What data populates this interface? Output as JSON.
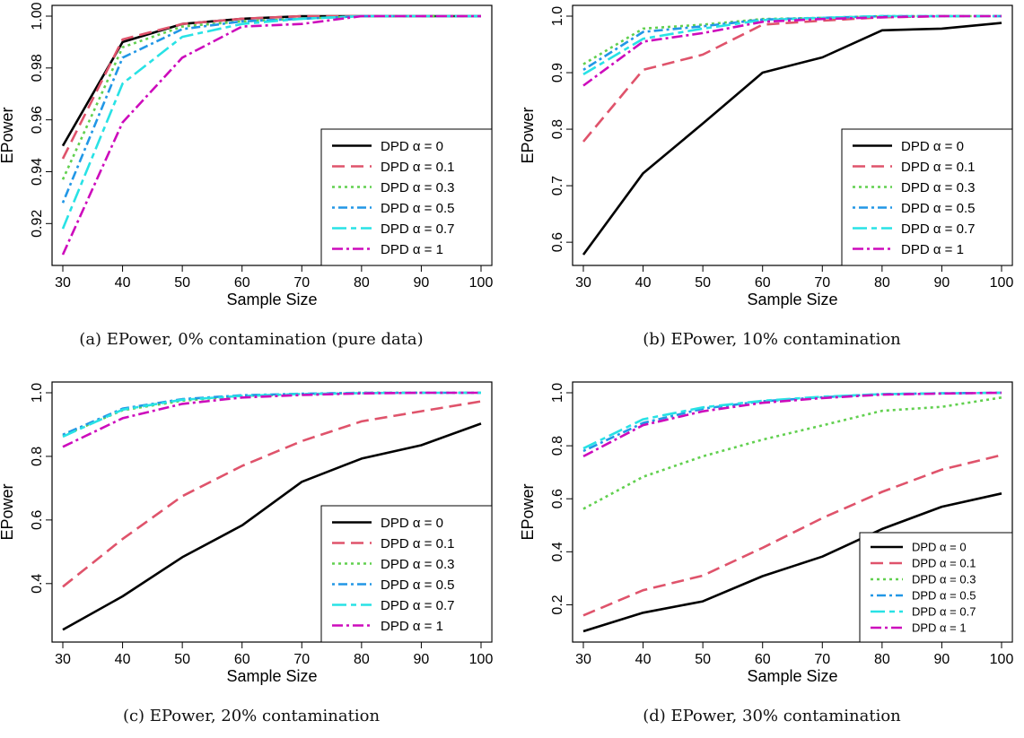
{
  "chart_data": [
    {
      "type": "line",
      "caption": "(a) EPower, 0% contamination (pure data)",
      "xlabel": "Sample Size",
      "ylabel": "EPower",
      "x": [
        30,
        40,
        50,
        60,
        70,
        80,
        90,
        100
      ],
      "xlim": [
        30,
        100
      ],
      "ylim": [
        0.908,
        1.0
      ],
      "yticks": [
        0.92,
        0.94,
        0.96,
        0.98,
        1.0
      ],
      "ytick_labels": [
        "0.92",
        "0.94",
        "0.96",
        "0.98",
        "1.00"
      ],
      "xticks": [
        30,
        40,
        50,
        60,
        70,
        80,
        90,
        100
      ],
      "legend_position": "bottom-right",
      "legend_size": "large",
      "series": [
        {
          "name": "DPD α = 0",
          "color": "#000000",
          "dash": "solid",
          "values": [
            0.95,
            0.99,
            0.997,
            0.999,
            1.0,
            1.0,
            1.0,
            1.0
          ]
        },
        {
          "name": "DPD α = 0.1",
          "color": "#df536b",
          "dash": "longdash",
          "values": [
            0.945,
            0.991,
            0.997,
            0.999,
            1.0,
            1.0,
            1.0,
            1.0
          ]
        },
        {
          "name": "DPD α = 0.3",
          "color": "#61d04f",
          "dash": "dotted",
          "values": [
            0.937,
            0.988,
            0.996,
            0.998,
            0.999,
            1.0,
            1.0,
            1.0
          ]
        },
        {
          "name": "DPD α = 0.5",
          "color": "#2297e6",
          "dash": "dotdash",
          "values": [
            0.928,
            0.984,
            0.995,
            0.998,
            0.999,
            1.0,
            1.0,
            1.0
          ]
        },
        {
          "name": "DPD α = 0.7",
          "color": "#28e2e5",
          "dash": "twodash",
          "values": [
            0.918,
            0.974,
            0.992,
            0.997,
            0.999,
            1.0,
            1.0,
            1.0
          ]
        },
        {
          "name": "DPD α = 1",
          "color": "#cd0bbc",
          "dash": "dashdot",
          "values": [
            0.908,
            0.959,
            0.984,
            0.996,
            0.997,
            1.0,
            1.0,
            1.0
          ]
        }
      ]
    },
    {
      "type": "line",
      "caption": "(b) EPower, 10% contamination",
      "xlabel": "Sample Size",
      "ylabel": "EPower",
      "x": [
        30,
        40,
        50,
        60,
        70,
        80,
        90,
        100
      ],
      "xlim": [
        30,
        100
      ],
      "ylim": [
        0.578,
        1.0
      ],
      "yticks": [
        0.6,
        0.7,
        0.8,
        0.9,
        1.0
      ],
      "ytick_labels": [
        "0.6",
        "0.7",
        "0.8",
        "0.9",
        "1.0"
      ],
      "xticks": [
        30,
        40,
        50,
        60,
        70,
        80,
        90,
        100
      ],
      "legend_position": "bottom-right",
      "legend_size": "large",
      "series": [
        {
          "name": "DPD α = 0",
          "color": "#000000",
          "dash": "solid",
          "values": [
            0.578,
            0.722,
            0.81,
            0.9,
            0.927,
            0.975,
            0.978,
            0.988
          ]
        },
        {
          "name": "DPD α = 0.1",
          "color": "#df536b",
          "dash": "longdash",
          "values": [
            0.778,
            0.905,
            0.932,
            0.985,
            0.992,
            0.998,
            1.0,
            1.0
          ]
        },
        {
          "name": "DPD α = 0.3",
          "color": "#61d04f",
          "dash": "dotted",
          "values": [
            0.915,
            0.978,
            0.985,
            0.995,
            0.997,
            1.0,
            1.0,
            1.0
          ]
        },
        {
          "name": "DPD α = 0.5",
          "color": "#2297e6",
          "dash": "dotdash",
          "values": [
            0.905,
            0.972,
            0.982,
            0.994,
            0.997,
            1.0,
            1.0,
            1.0
          ]
        },
        {
          "name": "DPD α = 0.7",
          "color": "#28e2e5",
          "dash": "twodash",
          "values": [
            0.897,
            0.96,
            0.978,
            0.993,
            0.997,
            1.0,
            1.0,
            1.0
          ]
        },
        {
          "name": "DPD α = 1",
          "color": "#cd0bbc",
          "dash": "dashdot",
          "values": [
            0.877,
            0.955,
            0.97,
            0.99,
            0.995,
            0.998,
            1.0,
            1.0
          ]
        }
      ]
    },
    {
      "type": "line",
      "caption": "(c) EPower, 20% contamination",
      "xlabel": "Sample Size",
      "ylabel": "EPower",
      "x": [
        30,
        40,
        50,
        60,
        70,
        80,
        90,
        100
      ],
      "xlim": [
        30,
        100
      ],
      "ylim": [
        0.25,
        1.0
      ],
      "yticks": [
        0.4,
        0.6,
        0.8,
        1.0
      ],
      "ytick_labels": [
        "0.4",
        "0.6",
        "0.8",
        "1.0"
      ],
      "xticks": [
        30,
        40,
        50,
        60,
        70,
        80,
        90,
        100
      ],
      "legend_position": "bottom-right",
      "legend_size": "large",
      "series": [
        {
          "name": "DPD α = 0",
          "color": "#000000",
          "dash": "solid",
          "values": [
            0.255,
            0.36,
            0.483,
            0.583,
            0.72,
            0.793,
            0.835,
            0.903
          ]
        },
        {
          "name": "DPD α = 0.1",
          "color": "#df536b",
          "dash": "longdash",
          "values": [
            0.39,
            0.54,
            0.675,
            0.77,
            0.848,
            0.91,
            0.942,
            0.973
          ]
        },
        {
          "name": "DPD α = 0.3",
          "color": "#61d04f",
          "dash": "dotted",
          "values": [
            0.865,
            0.945,
            0.975,
            0.99,
            0.995,
            1.0,
            1.0,
            1.0
          ]
        },
        {
          "name": "DPD α = 0.5",
          "color": "#2297e6",
          "dash": "dotdash",
          "values": [
            0.868,
            0.95,
            0.98,
            0.992,
            0.997,
            1.0,
            1.0,
            1.0
          ]
        },
        {
          "name": "DPD α = 0.7",
          "color": "#28e2e5",
          "dash": "twodash",
          "values": [
            0.862,
            0.947,
            0.978,
            0.99,
            0.996,
            0.999,
            1.0,
            1.0
          ]
        },
        {
          "name": "DPD α = 1",
          "color": "#cd0bbc",
          "dash": "dashdot",
          "values": [
            0.83,
            0.92,
            0.965,
            0.985,
            0.993,
            0.998,
            1.0,
            1.0
          ]
        }
      ]
    },
    {
      "type": "line",
      "caption": "(d) EPower, 30% contamination",
      "xlabel": "Sample Size",
      "ylabel": "EPower",
      "x": [
        30,
        40,
        50,
        60,
        70,
        80,
        90,
        100
      ],
      "xlim": [
        30,
        100
      ],
      "ylim": [
        0.1,
        1.0
      ],
      "yticks": [
        0.2,
        0.4,
        0.6,
        0.8,
        1.0
      ],
      "ytick_labels": [
        "0.2",
        "0.4",
        "0.6",
        "0.8",
        "1.0"
      ],
      "xticks": [
        30,
        40,
        50,
        60,
        70,
        80,
        90,
        100
      ],
      "legend_position": "bottom-right",
      "legend_size": "small",
      "series": [
        {
          "name": "DPD α = 0",
          "color": "#000000",
          "dash": "solid",
          "values": [
            0.1,
            0.17,
            0.213,
            0.308,
            0.382,
            0.486,
            0.57,
            0.62
          ]
        },
        {
          "name": "DPD α = 0.1",
          "color": "#df536b",
          "dash": "longdash",
          "values": [
            0.16,
            0.255,
            0.31,
            0.415,
            0.527,
            0.626,
            0.71,
            0.765
          ]
        },
        {
          "name": "DPD α = 0.3",
          "color": "#61d04f",
          "dash": "dotted",
          "values": [
            0.562,
            0.683,
            0.76,
            0.823,
            0.877,
            0.932,
            0.947,
            0.982
          ]
        },
        {
          "name": "DPD α = 0.5",
          "color": "#2297e6",
          "dash": "dotdash",
          "values": [
            0.78,
            0.886,
            0.94,
            0.968,
            0.983,
            0.995,
            0.998,
            1.0
          ]
        },
        {
          "name": "DPD α = 0.7",
          "color": "#28e2e5",
          "dash": "twodash",
          "values": [
            0.79,
            0.9,
            0.945,
            0.97,
            0.985,
            0.995,
            0.998,
            1.0
          ]
        },
        {
          "name": "DPD α = 1",
          "color": "#cd0bbc",
          "dash": "dashdot",
          "values": [
            0.76,
            0.878,
            0.93,
            0.962,
            0.98,
            0.993,
            0.997,
            1.0
          ]
        }
      ]
    }
  ]
}
